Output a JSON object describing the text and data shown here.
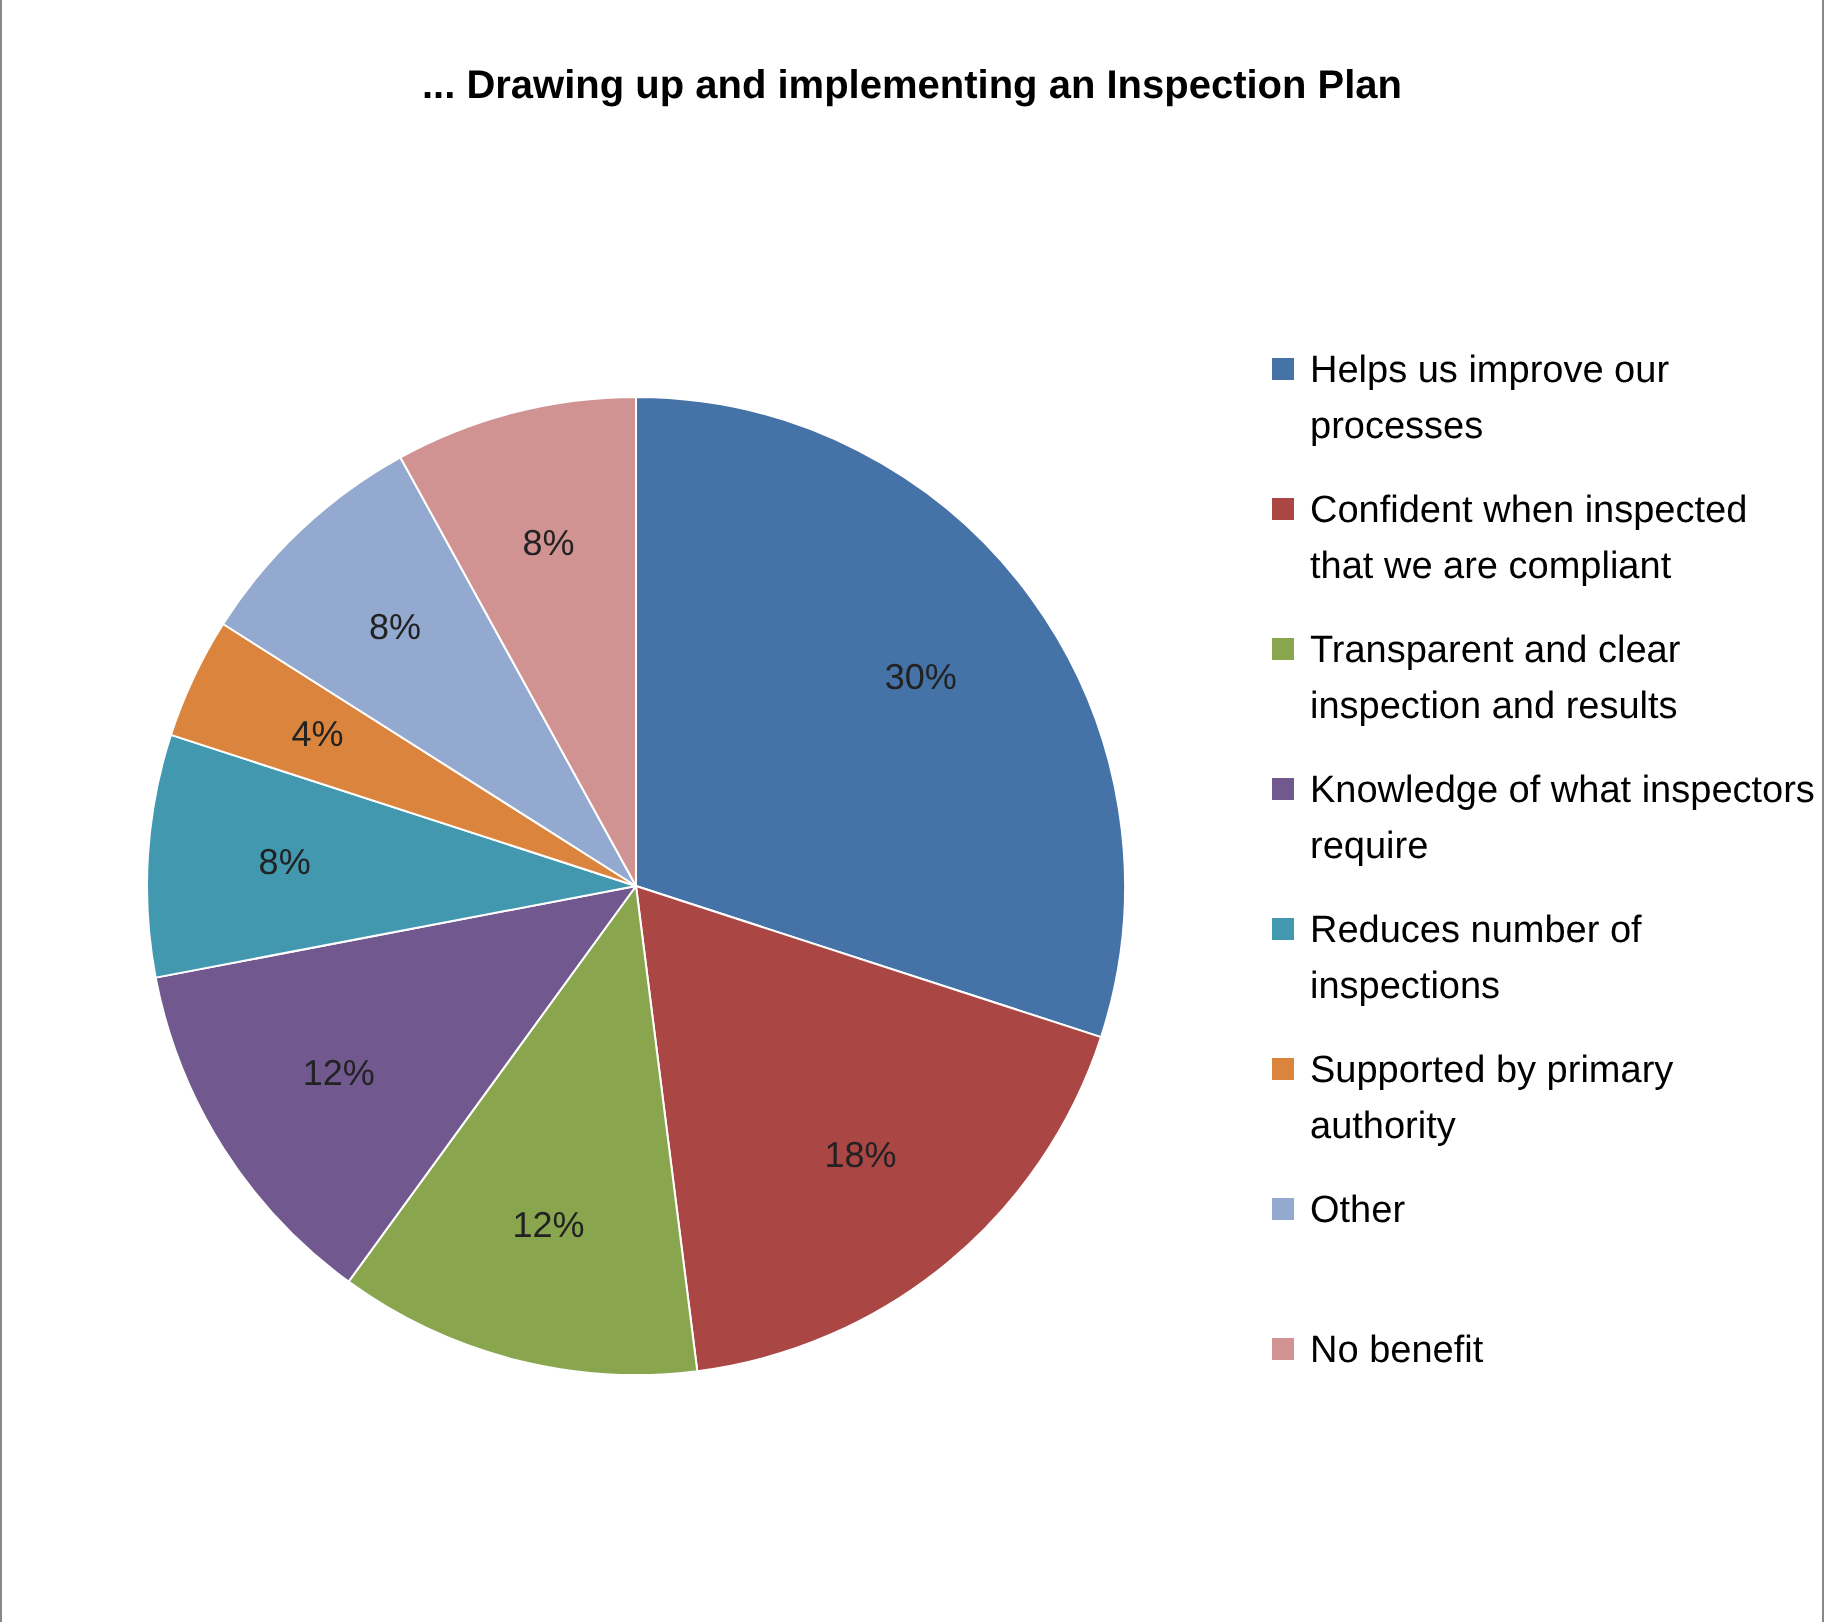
{
  "chart_data": {
    "type": "pie",
    "title": "...  Drawing up and implementing an Inspection Plan",
    "categories": [
      "Helps us improve our processes",
      "Confident when inspected that we are compliant",
      "Transparent and clear inspection and results",
      "Knowledge of what inspectors require",
      "Reduces number of inspections",
      "Supported by primary authority",
      "Other",
      "No benefit"
    ],
    "values": [
      30,
      18,
      12,
      12,
      8,
      4,
      8,
      8
    ],
    "value_labels": [
      "30%",
      "18%",
      "12%",
      "12%",
      "8%",
      "4%",
      "8%",
      "8%"
    ],
    "colors": [
      "#4572a7",
      "#aa4643",
      "#89a54e",
      "#71588f",
      "#4198af",
      "#db843d",
      "#93a9cf",
      "#d19392"
    ],
    "legend": "right"
  }
}
